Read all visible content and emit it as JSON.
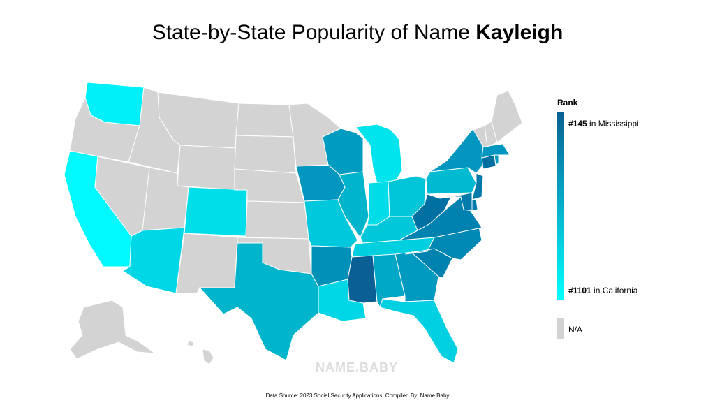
{
  "title": {
    "prefix": "State-by-State Popularity of Name ",
    "name": "Kayleigh"
  },
  "legend": {
    "title": "Rank",
    "max_rank": "#145",
    "max_state": " in Mississippi",
    "min_rank": "#1101",
    "min_state": " in California",
    "na_label": "N/A",
    "color_high": "#0a5f94",
    "color_low": "#00ffff",
    "color_na": "#d3d3d3"
  },
  "watermark": "NAME.BABY",
  "source": "Data Source: 2023 Social Security Applications; Compiled By: Name.Baby",
  "states": [
    {
      "abbr": "CA",
      "rank": 1101,
      "color": "#00f8ff"
    },
    {
      "abbr": "WA",
      "rank": null,
      "color": "#00f0fa"
    },
    {
      "abbr": "OR",
      "rank": null,
      "color": "#d3d3d3"
    },
    {
      "abbr": "NV",
      "rank": null,
      "color": "#d3d3d3"
    },
    {
      "abbr": "ID",
      "rank": null,
      "color": "#d3d3d3"
    },
    {
      "abbr": "MT",
      "rank": null,
      "color": "#d3d3d3"
    },
    {
      "abbr": "WY",
      "rank": null,
      "color": "#d3d3d3"
    },
    {
      "abbr": "UT",
      "rank": null,
      "color": "#d3d3d3"
    },
    {
      "abbr": "AZ",
      "rank": null,
      "color": "#00d7e6"
    },
    {
      "abbr": "CO",
      "rank": null,
      "color": "#00dfe9"
    },
    {
      "abbr": "NM",
      "rank": null,
      "color": "#d3d3d3"
    },
    {
      "abbr": "ND",
      "rank": null,
      "color": "#d3d3d3"
    },
    {
      "abbr": "SD",
      "rank": null,
      "color": "#d3d3d3"
    },
    {
      "abbr": "NE",
      "rank": null,
      "color": "#d3d3d3"
    },
    {
      "abbr": "KS",
      "rank": null,
      "color": "#d3d3d3"
    },
    {
      "abbr": "OK",
      "rank": null,
      "color": "#d3d3d3"
    },
    {
      "abbr": "TX",
      "rank": null,
      "color": "#00b4cc"
    },
    {
      "abbr": "MN",
      "rank": null,
      "color": "#d3d3d3"
    },
    {
      "abbr": "IA",
      "rank": null,
      "color": "#0096bf"
    },
    {
      "abbr": "MO",
      "rank": null,
      "color": "#00c8dc"
    },
    {
      "abbr": "AR",
      "rank": null,
      "color": "#0090b8"
    },
    {
      "abbr": "LA",
      "rank": null,
      "color": "#00d7e6"
    },
    {
      "abbr": "WI",
      "rank": null,
      "color": "#009bc1"
    },
    {
      "abbr": "IL",
      "rank": null,
      "color": "#00b4cc"
    },
    {
      "abbr": "MI",
      "rank": null,
      "color": "#00e4ee"
    },
    {
      "abbr": "IN",
      "rank": null,
      "color": "#00dde8"
    },
    {
      "abbr": "OH",
      "rank": null,
      "color": "#00c4d8"
    },
    {
      "abbr": "KY",
      "rank": null,
      "color": "#00c8da"
    },
    {
      "abbr": "TN",
      "rank": null,
      "color": "#00cfe0"
    },
    {
      "abbr": "MS",
      "rank": 145,
      "color": "#0a5f94"
    },
    {
      "abbr": "AL",
      "rank": null,
      "color": "#00a8c8"
    },
    {
      "abbr": "GA",
      "rank": null,
      "color": "#009ac0"
    },
    {
      "abbr": "FL",
      "rank": null,
      "color": "#00d0e2"
    },
    {
      "abbr": "SC",
      "rank": null,
      "color": "#0082b0"
    },
    {
      "abbr": "NC",
      "rank": null,
      "color": "#0088b4"
    },
    {
      "abbr": "VA",
      "rank": null,
      "color": "#0082b0"
    },
    {
      "abbr": "WV",
      "rank": null,
      "color": "#006fa2"
    },
    {
      "abbr": "PA",
      "rank": null,
      "color": "#00bad2"
    },
    {
      "abbr": "NY",
      "rank": null,
      "color": "#0096bf"
    },
    {
      "abbr": "NJ",
      "rank": null,
      "color": "#007aab"
    },
    {
      "abbr": "MD",
      "rank": null,
      "color": "#007aab"
    },
    {
      "abbr": "DE",
      "rank": null,
      "color": "#007aab"
    },
    {
      "abbr": "CT",
      "rank": null,
      "color": "#006fa2"
    },
    {
      "abbr": "MA",
      "rank": null,
      "color": "#0096bf"
    },
    {
      "abbr": "RI",
      "rank": null,
      "color": "#009bc1"
    },
    {
      "abbr": "VT",
      "rank": null,
      "color": "#d3d3d3"
    },
    {
      "abbr": "NH",
      "rank": null,
      "color": "#d3d3d3"
    },
    {
      "abbr": "ME",
      "rank": null,
      "color": "#d3d3d3"
    },
    {
      "abbr": "AK",
      "rank": null,
      "color": "#d3d3d3"
    },
    {
      "abbr": "HI",
      "rank": null,
      "color": "#d3d3d3"
    }
  ]
}
